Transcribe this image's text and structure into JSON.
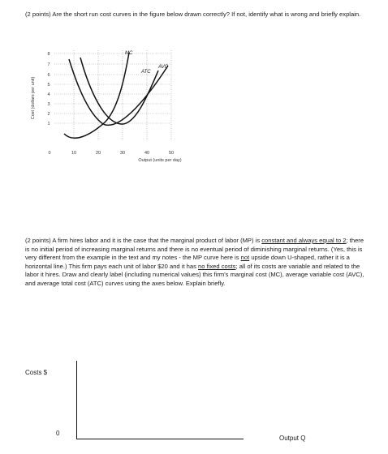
{
  "question1": {
    "text": "(2 points) Are the short run cost curves in the figure below drawn correctly? If not, identify what is wrong and briefly explain."
  },
  "figure": {
    "ylabel": "Cost (dollars per unit)",
    "xlabel": "Output (units per day)",
    "y_ticks": [
      "1",
      "2",
      "3",
      "4",
      "5",
      "6",
      "7",
      "8"
    ],
    "x_ticks": [
      "0",
      "10",
      "20",
      "30",
      "40",
      "50"
    ],
    "curve_labels": {
      "mc": "MC",
      "atc": "ATC",
      "avc": "AVC"
    },
    "colors": {
      "curve": "#111111",
      "grid": "#9a9a9a"
    }
  },
  "question2": {
    "part1": "(2 points) A firm hires labor and it is the case that the marginal product of labor (MP) is ",
    "part2": "constant and always equal to 2",
    "part3": "; there is no initial period of increasing marginal returns and there is no eventual period of diminishing marginal returns. (Yes, this is very different from the example in the text and my notes - the MP curve here is ",
    "part4": "not",
    "part5": " upside down U-shaped, rather it is a horizontal line.) This firm pays each unit of labor $20 and it has ",
    "part6": "no fixed costs",
    "part7": "; all of its costs are variable and related to the labor it hires. Draw and clearly label (including numerical values) this firm's marginal cost (MC), average variable cost (AVC), and average total cost (ATC) curves using the axes below. Explain briefly."
  },
  "answer_axes": {
    "ylabel": "Costs $",
    "xlabel": "Output Q",
    "origin": "0"
  }
}
